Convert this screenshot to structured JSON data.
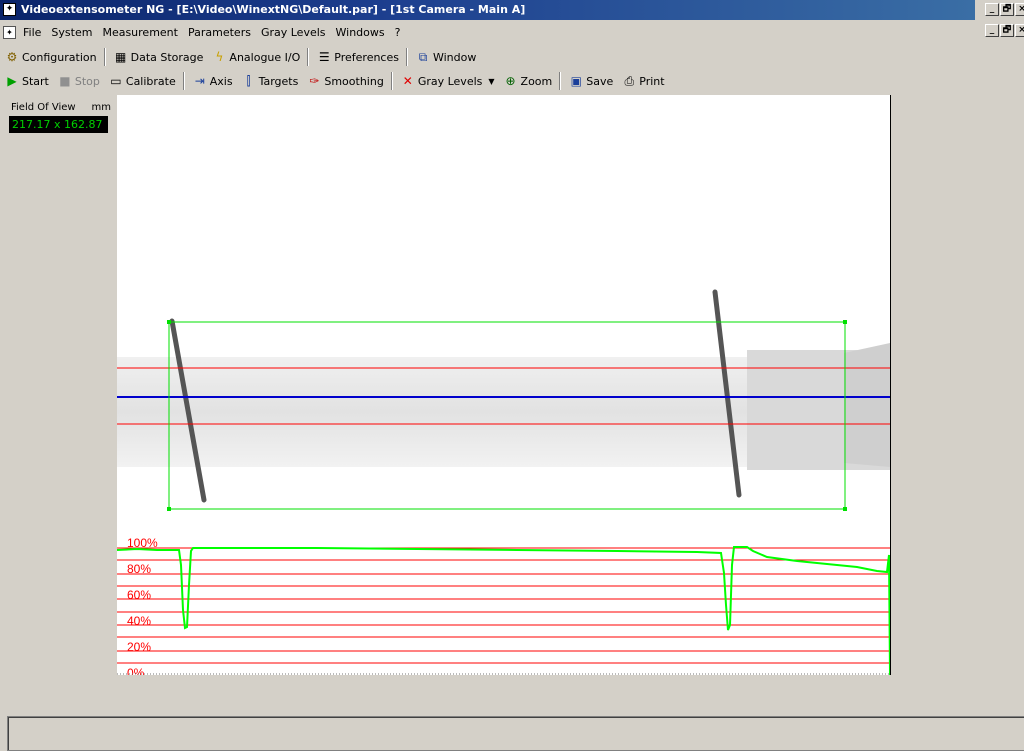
{
  "window": {
    "title": "Videoextensometer NG - [E:\\Video\\WinextNG\\Default.par] - [1st Camera - Main A]",
    "min_label": "_",
    "max_label": "🗗",
    "close_label": "×"
  },
  "menu": {
    "items": [
      "File",
      "System",
      "Measurement",
      "Parameters",
      "Gray Levels",
      "Windows",
      "?"
    ]
  },
  "toolbar1": {
    "configuration": "Configuration",
    "data_storage": "Data Storage",
    "analogue_io": "Analogue I/O",
    "preferences": "Preferences",
    "window": "Window"
  },
  "toolbar2": {
    "start": "Start",
    "stop": "Stop",
    "calibrate": "Calibrate",
    "axis": "Axis",
    "targets": "Targets",
    "smoothing": "Smoothing",
    "gray_levels": "Gray Levels",
    "zoom": "Zoom",
    "save": "Save",
    "print": "Print"
  },
  "field_of_view": {
    "label": "Field Of View",
    "unit": "mm",
    "value": "217.17 x 162.87"
  },
  "profile_chart": {
    "percent_labels": [
      "100%",
      "80%",
      "60%",
      "40%",
      "20%",
      "0%"
    ],
    "colors": {
      "grid": "#ff0000",
      "trace": "#00ff00",
      "axis_line": "#0000cc",
      "roi": "#00e000"
    }
  }
}
